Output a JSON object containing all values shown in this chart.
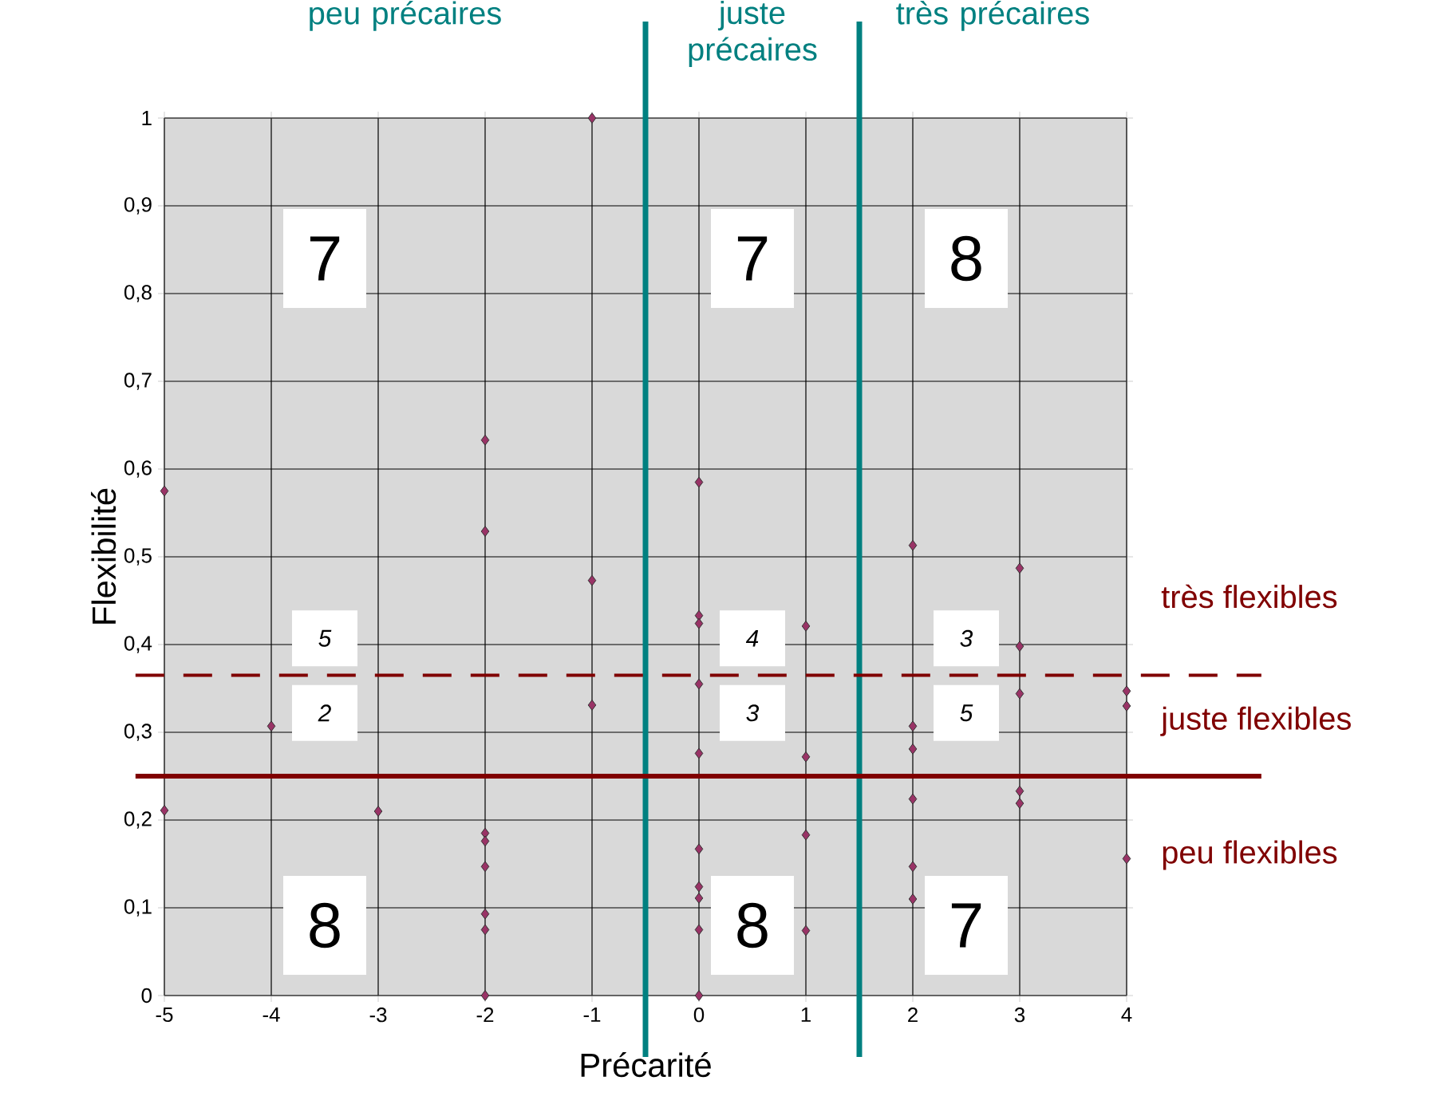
{
  "chart_data": {
    "type": "scatter",
    "xlabel": "Précarité",
    "ylabel": "Flexibilité",
    "x": [
      -5,
      -5,
      -4,
      -3,
      -2,
      -2,
      -2,
      -2,
      -2,
      -2,
      -2,
      -2,
      -1,
      -1,
      -1,
      0,
      0,
      0,
      0,
      0,
      0,
      0,
      0,
      0,
      0,
      1,
      1,
      1,
      1,
      2,
      2,
      2,
      2,
      2,
      2,
      3,
      3,
      3,
      3,
      3,
      4,
      4,
      4
    ],
    "series": [
      {
        "color": "#993366",
        "values": [
          0.575,
          0.211,
          0.307,
          0.21,
          0.633,
          0.529,
          0.185,
          0.176,
          0.147,
          0.093,
          0.075,
          0,
          1,
          0.473,
          0.331,
          0.585,
          0.433,
          0.424,
          0.355,
          0.276,
          0.167,
          0.124,
          0.111,
          0.075,
          0,
          0.421,
          0.272,
          0.183,
          0.074,
          0.513,
          0.307,
          0.281,
          0.224,
          0.147,
          0.11,
          0.487,
          0.398,
          0.344,
          0.233,
          0.219,
          0.347,
          0.33,
          0.156
        ]
      }
    ],
    "marker": "diamond",
    "grid": true,
    "xlim": [
      -5,
      4
    ],
    "xticks": [
      -5,
      -4,
      -3,
      -2,
      -1,
      0,
      1,
      2,
      3,
      4
    ],
    "ylim": [
      0,
      1
    ],
    "yticks": [
      0,
      {
        "value": 0.1,
        "label": "0,1"
      },
      {
        "value": 0.2,
        "label": "0,2"
      },
      {
        "value": 0.3,
        "label": "0,3"
      },
      {
        "value": 0.4,
        "label": "0,4"
      },
      {
        "value": 0.5,
        "label": "0,5"
      },
      {
        "value": 0.6,
        "label": "0,6"
      },
      {
        "value": 0.7,
        "label": "0,7"
      },
      {
        "value": 0.8,
        "label": "0,8"
      },
      {
        "value": 0.9,
        "label": "0,9"
      },
      1
    ],
    "ref_lines": [
      {
        "axis": "x",
        "value": -0.5,
        "color": "#008080",
        "line_style": "solid"
      },
      {
        "axis": "x",
        "value": 1.5,
        "color": "#008080",
        "line_style": "solid"
      },
      {
        "axis": "y",
        "value": 0.365,
        "color": "#800000",
        "line_style": "dashed"
      },
      {
        "axis": "y",
        "value": 0.25,
        "color": "#800000",
        "line_style": "solid"
      }
    ],
    "annotations": [
      "peu précaires",
      "juste précaires",
      "très précaires",
      "très flexibles",
      "juste flexibles",
      "peu flexibles",
      "7",
      "7",
      "8",
      "8",
      "8",
      "7",
      "5",
      "2",
      "4",
      "3",
      "3",
      "5"
    ]
  }
}
